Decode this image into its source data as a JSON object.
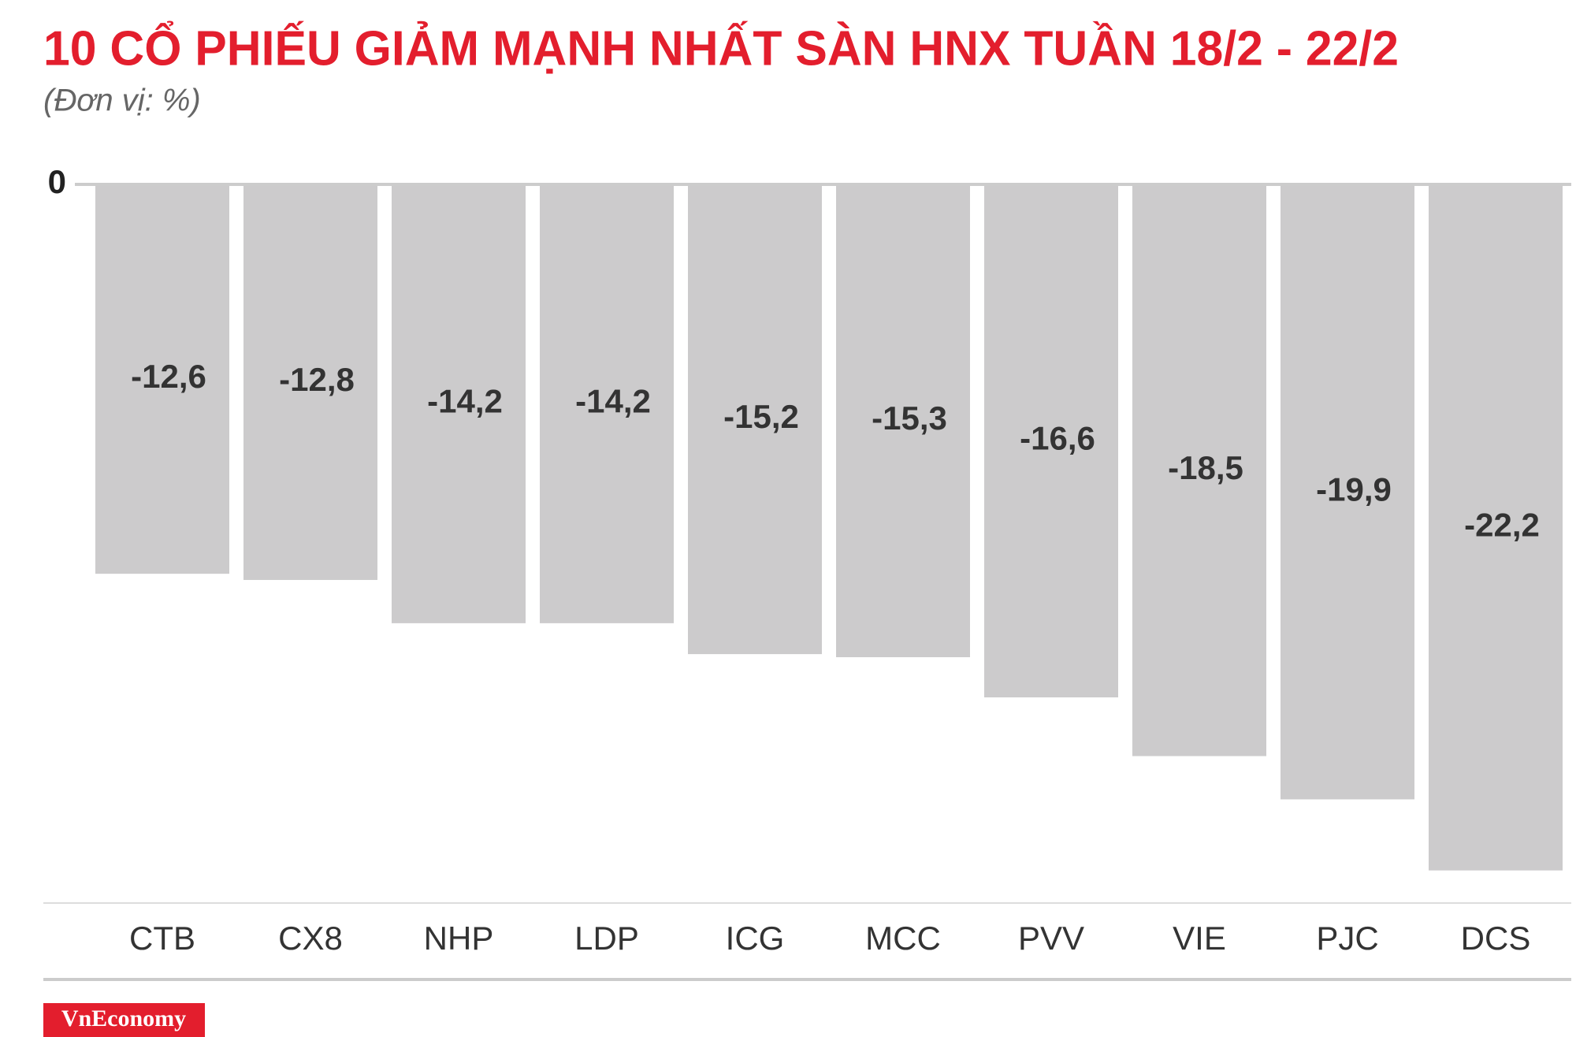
{
  "chart_data": {
    "type": "bar",
    "title": "10 CỔ PHIẾU GIẢM MẠNH NHẤT SÀN HNX TUẦN 18/2 - 22/2",
    "subtitle": "(Đơn vị: %)",
    "categories": [
      "CTB",
      "CX8",
      "NHP",
      "LDP",
      "ICG",
      "MCC",
      "PVV",
      "VIE",
      "PJC",
      "DCS"
    ],
    "values": [
      -12.6,
      -12.8,
      -14.2,
      -14.2,
      -15.2,
      -15.3,
      -16.6,
      -18.5,
      -19.9,
      -22.2
    ],
    "value_labels": [
      "-12,6",
      "-12,8",
      "-14,2",
      "-14,2",
      "-15,2",
      "-15,3",
      "-16,6",
      "-18,5",
      "-19,9",
      "-22,2"
    ],
    "color": "#cccbcc",
    "ylim": [
      -23,
      0
    ],
    "yticks": [
      0
    ],
    "logo": "VnEconomy"
  }
}
